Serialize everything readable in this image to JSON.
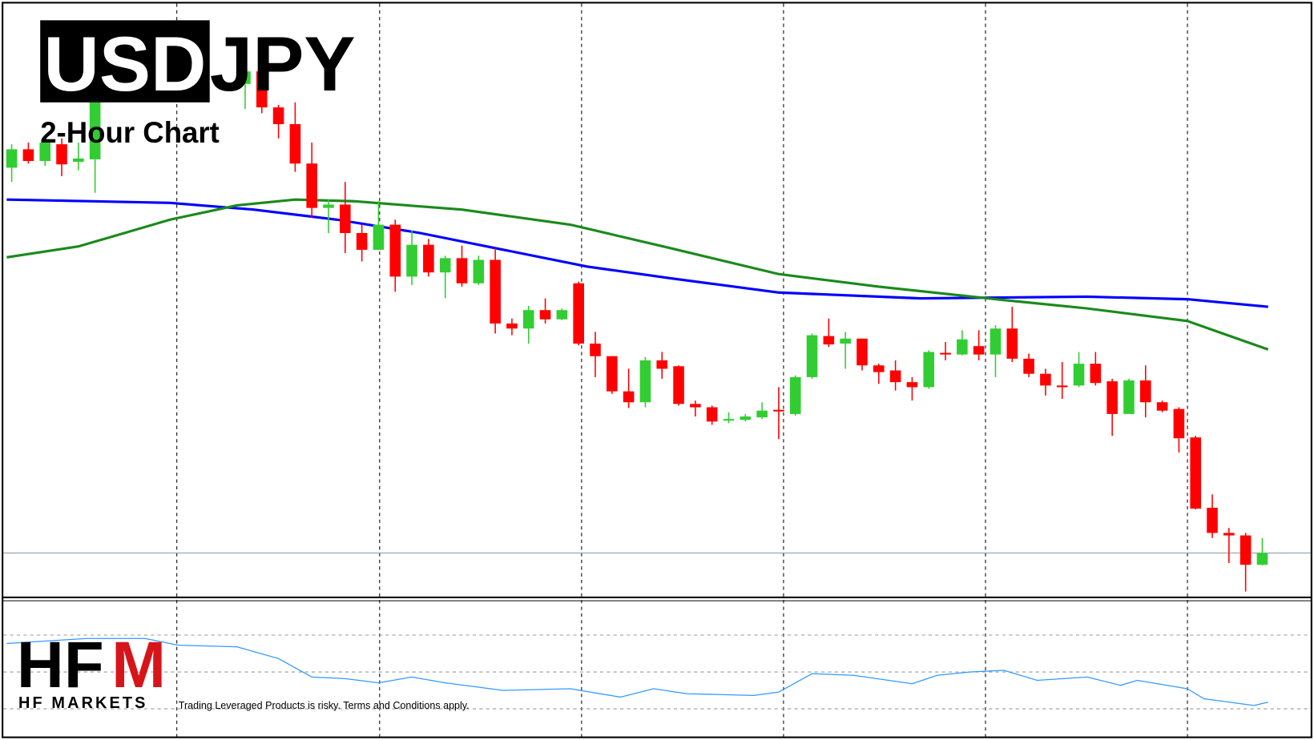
{
  "chart_data": {
    "type": "candlestick",
    "title": {
      "base": "USD",
      "quote": "JPY"
    },
    "subtitle": "2-Hour Chart",
    "up_color": "#32cd32",
    "down_color": "#ff0000",
    "xlim": [
      0,
      1568
    ],
    "ylim": [
      0,
      710
    ],
    "x": [
      10,
      30,
      50,
      70,
      90,
      110,
      290,
      310,
      330,
      350,
      370,
      390,
      410,
      430,
      450,
      470,
      490,
      510,
      530,
      550,
      570,
      590,
      610,
      630,
      650,
      670,
      690,
      710,
      730,
      750,
      770,
      790,
      810,
      830,
      850,
      870,
      890,
      910,
      930,
      950,
      970,
      990,
      1010,
      1030,
      1050,
      1070,
      1090,
      1110,
      1130,
      1150,
      1170,
      1190,
      1210,
      1230,
      1250,
      1270,
      1290,
      1310,
      1330,
      1350,
      1370,
      1390,
      1410,
      1430,
      1450,
      1470,
      1490,
      1510
    ],
    "open": [
      514,
      536,
      522,
      542,
      521,
      524,
      614,
      629,
      586,
      566,
      519,
      466,
      470,
      436,
      416,
      446,
      384,
      422,
      389,
      406,
      376,
      404,
      328,
      322,
      344,
      333,
      376,
      304,
      289,
      247,
      234,
      284,
      277,
      232,
      228,
      212,
      213,
      216,
      225,
      220,
      264,
      313,
      304,
      310,
      278,
      272,
      258,
      252,
      293,
      291,
      301,
      291,
      322,
      286,
      268,
      254,
      254,
      280,
      259,
      220,
      260,
      234,
      226,
      192,
      108,
      78,
      75,
      40
    ],
    "high": [
      542,
      544,
      549,
      549,
      544,
      609,
      634,
      634,
      589,
      592,
      544,
      476,
      497,
      446,
      474,
      452,
      439,
      429,
      409,
      421,
      409,
      418,
      334,
      349,
      358,
      346,
      378,
      318,
      289,
      274,
      288,
      294,
      278,
      236,
      230,
      222,
      220,
      234,
      252,
      266,
      316,
      334,
      318,
      310,
      280,
      284,
      264,
      296,
      306,
      320,
      320,
      326,
      348,
      292,
      274,
      282,
      294,
      294,
      262,
      262,
      278,
      236,
      228,
      194,
      124,
      84,
      78,
      72
    ],
    "low": [
      497,
      519,
      516,
      504,
      511,
      484,
      584,
      579,
      549,
      509,
      454,
      436,
      412,
      402,
      416,
      366,
      374,
      384,
      358,
      372,
      374,
      316,
      314,
      304,
      328,
      332,
      302,
      264,
      244,
      227,
      228,
      262,
      230,
      217,
      207,
      209,
      211,
      214,
      190,
      218,
      262,
      300,
      274,
      272,
      256,
      248,
      236,
      250,
      284,
      290,
      284,
      264,
      282,
      264,
      242,
      238,
      252,
      254,
      194,
      220,
      216,
      222,
      174,
      106,
      72,
      42,
      8,
      39
    ],
    "close": [
      536,
      522,
      544,
      518,
      525,
      594,
      629,
      586,
      566,
      519,
      466,
      470,
      436,
      416,
      446,
      384,
      422,
      389,
      406,
      376,
      404,
      328,
      322,
      344,
      333,
      344,
      304,
      289,
      247,
      234,
      284,
      274,
      232,
      228,
      211,
      214,
      217,
      224,
      223,
      264,
      314,
      303,
      310,
      278,
      270,
      258,
      252,
      294,
      291,
      309,
      291,
      322,
      286,
      268,
      254,
      253,
      280,
      257,
      220,
      260,
      234,
      224,
      191,
      107,
      78,
      75,
      40,
      54
    ],
    "moving_averages": [
      {
        "color": "#0000ff",
        "x": [
          4,
          200,
          300,
          400,
          500,
          600,
          700,
          800,
          930,
          1100,
          1300,
          1420,
          1517
        ],
        "values": [
          476,
          472,
          464,
          452,
          436,
          416,
          396,
          382,
          365,
          358,
          360,
          357,
          348
        ]
      },
      {
        "color": "#1a8a1a",
        "x": [
          4,
          90,
          200,
          280,
          350,
          420,
          550,
          680,
          800,
          930,
          1050,
          1200,
          1300,
          1420,
          1517
        ],
        "values": [
          407,
          420,
          452,
          469,
          476,
          474,
          464,
          446,
          418,
          387,
          372,
          356,
          346,
          331,
          297
        ]
      }
    ],
    "price_line": 54,
    "indicator": {
      "color": "#3399ff",
      "ylim": [
        0,
        165
      ],
      "x": [
        4,
        100,
        170,
        210,
        280,
        330,
        370,
        410,
        450,
        490,
        530,
        600,
        680,
        740,
        780,
        820,
        900,
        930,
        970,
        1020,
        1090,
        1120,
        1160,
        1200,
        1240,
        1300,
        1340,
        1360,
        1420,
        1440,
        1500,
        1517
      ],
      "values": [
        112,
        118,
        118,
        110,
        108,
        94,
        72,
        70,
        65,
        72,
        65,
        56,
        58,
        48,
        58,
        52,
        50,
        54,
        76,
        74,
        64,
        74,
        78,
        80,
        68,
        72,
        62,
        68,
        58,
        46,
        38,
        42
      ]
    }
  },
  "logo": {
    "letters": "HF",
    "m": "M",
    "name": "HF MARKETS"
  },
  "disclaimer": "Trading Leveraged Products is risky. Terms and Conditions apply."
}
